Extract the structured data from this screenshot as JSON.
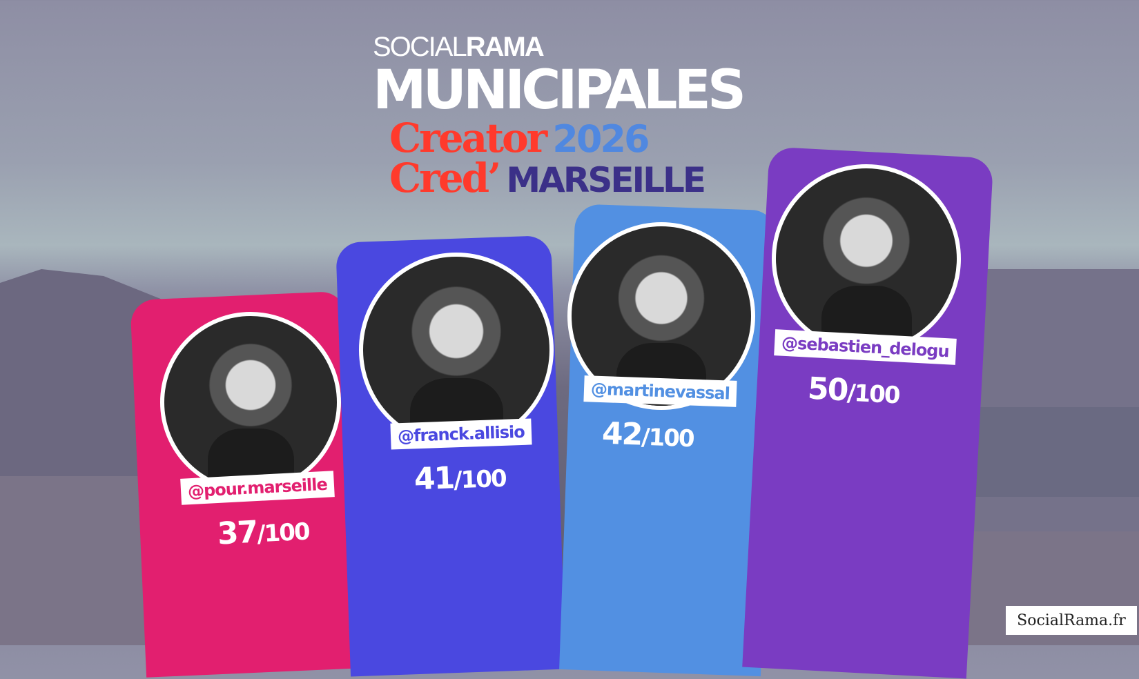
{
  "header": {
    "logo_light": "SOCIAL",
    "logo_bold": "RAMA",
    "title": "MUNICIPALES",
    "creator_line1": "Creator",
    "creator_line2": "Cred’",
    "year": "2026",
    "city": "MARSEILLE"
  },
  "chart_data": {
    "type": "bar",
    "categories": [
      "@pour.marseille",
      "@franck.allisio",
      "@martinevassal",
      "@sebastien_delogu"
    ],
    "values": [
      37,
      41,
      42,
      50
    ],
    "labels": [
      "37/100",
      "41/100",
      "42/100",
      "50/100"
    ],
    "ylim": [
      0,
      100
    ],
    "colors": [
      "#e21f6f",
      "#4a48e0",
      "#5290e2",
      "#7a3cc2"
    ]
  },
  "bars": [
    {
      "handle": "@pour.marseille",
      "score": "37",
      "denominator": "/100"
    },
    {
      "handle": "@franck.allisio",
      "score": "41",
      "denominator": "/100"
    },
    {
      "handle": "@martinevassal",
      "score": "42",
      "denominator": "/100"
    },
    {
      "handle": "@sebastien_delogu",
      "score": "50",
      "denominator": "/100"
    }
  ],
  "footer": {
    "credit": "SocialRama.fr"
  }
}
